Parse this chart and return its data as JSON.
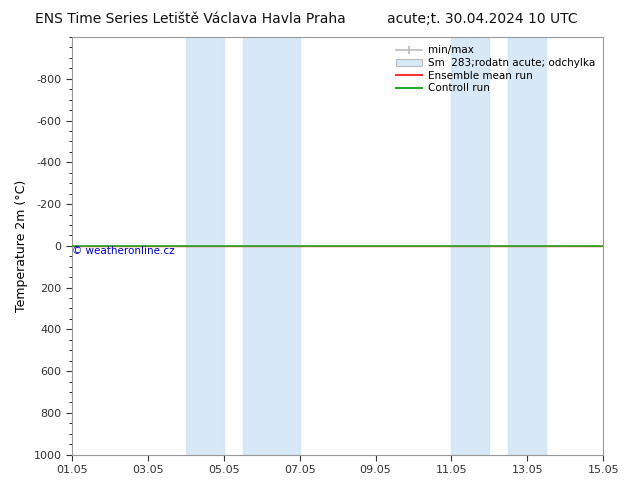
{
  "title_left": "ENS Time Series Letiště Václava Havla Praha",
  "title_right": "acute;t. 30.04.2024 10 UTC",
  "ylabel": "Temperature 2m (°C)",
  "ylim_top": -1000,
  "ylim_bottom": 1000,
  "yticks": [
    -800,
    -600,
    -400,
    -200,
    0,
    200,
    400,
    600,
    800,
    1000
  ],
  "xtick_labels": [
    "01.05",
    "03.05",
    "05.05",
    "07.05",
    "09.05",
    "11.05",
    "13.05",
    "15.05"
  ],
  "xtick_positions": [
    0,
    2,
    4,
    6,
    8,
    10,
    12,
    14
  ],
  "xlim": [
    0,
    14
  ],
  "blue_bands": [
    [
      3.0,
      4.0
    ],
    [
      4.5,
      6.0
    ],
    [
      10.0,
      11.0
    ],
    [
      11.5,
      12.5
    ]
  ],
  "green_line_y": 0,
  "red_line_y": 0,
  "watermark": "© weatheronline.cz",
  "watermark_color": "#0000cc",
  "legend_entries": [
    "min/max",
    "Sm  283;rodatn acute; odchylka",
    "Ensemble mean run",
    "Controll run"
  ],
  "legend_colors": [
    "#bbbbbb",
    "#d8eaf7",
    "#ff3333",
    "#22aa22"
  ],
  "background_color": "#ffffff",
  "plot_bg_color": "#ffffff",
  "title_fontsize": 10,
  "axis_fontsize": 9,
  "tick_fontsize": 8,
  "band_color": "#d0e5f5",
  "band_alpha": 0.85
}
